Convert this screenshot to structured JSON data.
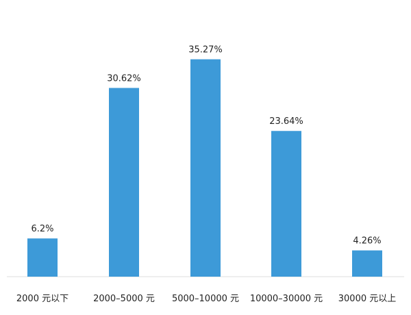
{
  "chart_data": {
    "type": "bar",
    "categories": [
      "2000 元以下",
      "2000–5000 元",
      "5000–10000 元",
      "10000–30000 元",
      "30000 元以上"
    ],
    "values": [
      6.2,
      30.62,
      35.27,
      23.64,
      4.26
    ],
    "value_labels": [
      "6.2%",
      "30.62%",
      "35.27%",
      "23.64%",
      "4.26%"
    ],
    "title": "",
    "xlabel": "",
    "ylabel": "",
    "ylim": [
      0,
      40
    ],
    "grid": false,
    "legend": "none",
    "bar_color": "#3d9ad8"
  }
}
